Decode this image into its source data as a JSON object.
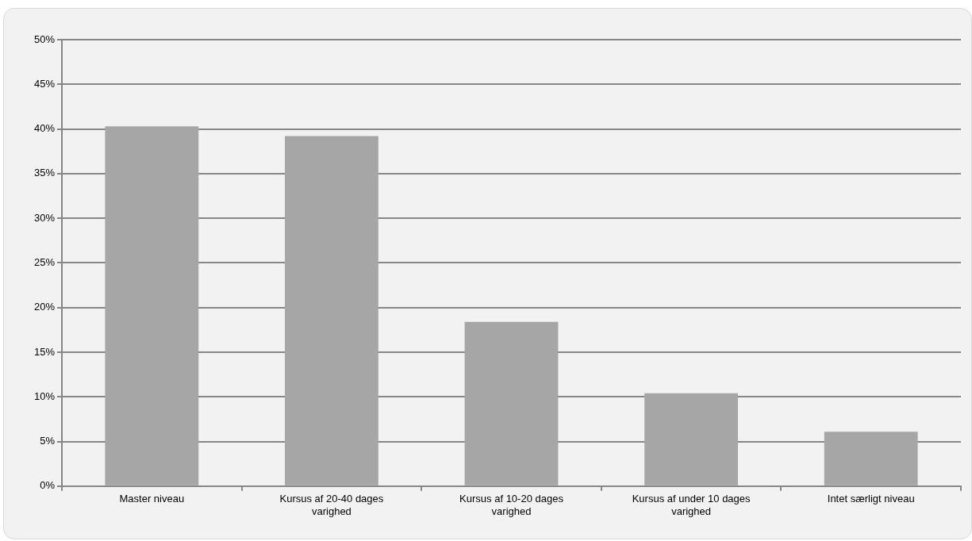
{
  "chart_data": {
    "type": "bar",
    "categories": [
      "Master niveau",
      "Kursus af 20-40 dages varighed",
      "Kursus af 10-20 dages varighed",
      "Kursus af under 10 dages varighed",
      "Intet særligt niveau"
    ],
    "values": [
      40.3,
      39.2,
      18.4,
      10.4,
      6.1
    ],
    "color": "#a6a6a6",
    "ylim": [
      0,
      50
    ],
    "yticks": [
      {
        "value": 0,
        "label": "0%"
      },
      {
        "value": 5,
        "label": "5%"
      },
      {
        "value": 10,
        "label": "10%"
      },
      {
        "value": 15,
        "label": "15%"
      },
      {
        "value": 20,
        "label": "20%"
      },
      {
        "value": 25,
        "label": "25%"
      },
      {
        "value": 30,
        "label": "30%"
      },
      {
        "value": 35,
        "label": "35%"
      },
      {
        "value": 40,
        "label": "40%"
      },
      {
        "value": 45,
        "label": "45%"
      },
      {
        "value": 50,
        "label": "50%"
      }
    ],
    "grid": "y",
    "legend": false
  }
}
